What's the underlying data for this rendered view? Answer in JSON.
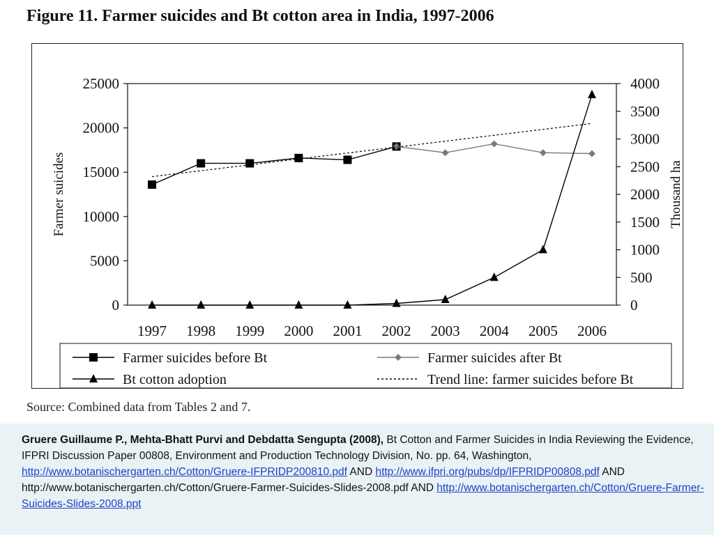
{
  "figure_title": "Figure 11. Farmer suicides and Bt cotton area in India, 1997-2006",
  "source_note": "Source: Combined data from Tables 2 and 7.",
  "chart_data": {
    "type": "line",
    "title": "Figure 11. Farmer suicides and Bt cotton area in India, 1997-2006",
    "x": [
      "1997",
      "1998",
      "1999",
      "2000",
      "2001",
      "2002",
      "2003",
      "2004",
      "2005",
      "2006"
    ],
    "ylabel_left": "Farmer suicides",
    "ylabel_right": "Thousand ha",
    "ylim_left": [
      0,
      25000
    ],
    "ylim_right": [
      0,
      4000
    ],
    "yticks_left": [
      "0",
      "5000",
      "10000",
      "15000",
      "20000",
      "25000"
    ],
    "yticks_right": [
      "0",
      "500",
      "1000",
      "1500",
      "2000",
      "2500",
      "3000",
      "3500",
      "4000"
    ],
    "grid": false,
    "series": [
      {
        "name": "Farmer suicides before Bt",
        "axis": "left",
        "marker": "square",
        "color": "#000000",
        "x": [
          "1997",
          "1998",
          "1999",
          "2000",
          "2001",
          "2002"
        ],
        "values": [
          13600,
          16000,
          16000,
          16600,
          16400,
          17900
        ]
      },
      {
        "name": "Farmer suicides after Bt",
        "axis": "left",
        "marker": "diamond",
        "color": "#7a7a7a",
        "x": [
          "2002",
          "2003",
          "2004",
          "2005",
          "2006"
        ],
        "values": [
          17900,
          17200,
          18200,
          17200,
          17100
        ]
      },
      {
        "name": "Bt cotton adoption",
        "axis": "right",
        "marker": "triangle",
        "color": "#000000",
        "x": [
          "1997",
          "1998",
          "1999",
          "2000",
          "2001",
          "2002",
          "2003",
          "2004",
          "2005",
          "2006"
        ],
        "values": [
          0,
          0,
          0,
          0,
          0,
          30,
          100,
          500,
          1000,
          3800
        ]
      },
      {
        "name": "Trend line: farmer suicides before Bt",
        "axis": "left",
        "marker": "none",
        "style": "dashed",
        "color": "#000000",
        "x": [
          "1997",
          "2006"
        ],
        "values": [
          14500,
          20500
        ]
      }
    ],
    "legend": [
      "Farmer suicides before Bt",
      "Farmer suicides after Bt",
      "Bt cotton adoption",
      "Trend line: farmer suicides before Bt"
    ],
    "legend_position": "bottom"
  },
  "citation": {
    "authors": "Gruere Guillaume P., Mehta-Bhatt Purvi and Debdatta Sengupta (2008),",
    "text_1": " Bt Cotton and Farmer Suicides in India Reviewing the Evidence, IFPRI Discussion Paper 00808, Environment and Production Technology Division,  No.   pp. 64,  Washington,  ",
    "link_1": "http://www.botanischergarten.ch/Cotton/Gruere-IFPRIDP200810.pdf",
    "text_2": "  AND ",
    "link_2": "http://www.ifpri.org/pubs/dp/IFPRIDP00808.pdf",
    "text_3": " AND http://www.botanischergarten.ch/Cotton/Gruere-Farmer-Suicides-Slides-2008.pdf AND ",
    "link_3": "http://www.botanischergarten.ch/Cotton/Gruere-Farmer-Suicides-Slides-2008.ppt"
  }
}
